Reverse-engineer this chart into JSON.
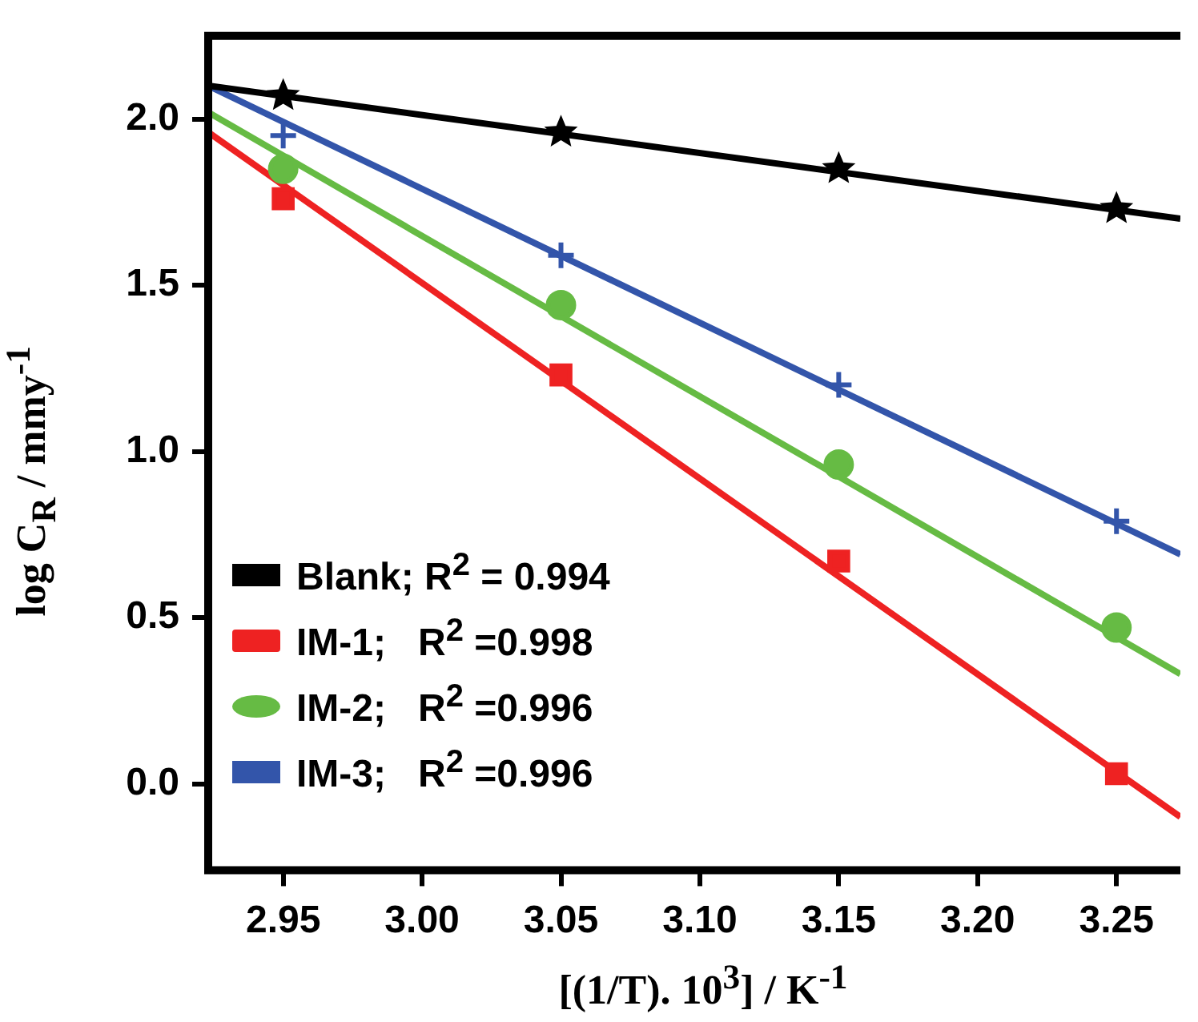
{
  "chart_data": {
    "type": "scatter",
    "xlabel": "[(1/T). 10$^{3}$] / K$^{-1}$",
    "ylabel": "log C$_{R}$ / mmy$^{-1}$",
    "xlim": [
      2.923,
      3.273
    ],
    "xticks": [
      2.95,
      {
        "value": 3.0,
        "label": "3.00"
      },
      3.05,
      {
        "value": 3.1,
        "label": "3.10"
      },
      3.15,
      {
        "value": 3.2,
        "label": "3.20"
      },
      3.25
    ],
    "ylim": [
      -0.26,
      2.25
    ],
    "yticks": [
      {
        "value": 0,
        "label": "0.0"
      },
      {
        "value": 0.5,
        "label": "0.5"
      },
      {
        "value": 1,
        "label": "1.0"
      },
      {
        "value": 1.5,
        "label": "1.5"
      },
      {
        "value": 2,
        "label": "2.0"
      }
    ],
    "grid": false,
    "legend": "bottom left",
    "series": [
      {
        "type": "scatter",
        "name": "Blank; R$^{2}$ = 0.994",
        "color": "#000000",
        "marker": "star",
        "x": [
          2.95,
          3.05,
          3.15,
          3.25
        ],
        "values": [
          2.07,
          1.96,
          1.85,
          1.73
        ]
      },
      {
        "type": "scatter",
        "name": "IM-1;   R$^{2}$ =0.998",
        "color": "#ee2222",
        "marker": "square",
        "x": [
          2.95,
          3.05,
          3.15,
          3.25
        ],
        "values": [
          1.76,
          1.23,
          0.67,
          0.03
        ]
      },
      {
        "type": "scatter",
        "name": "IM-2;   R$^{2}$ =0.996",
        "color": "#66bb44",
        "marker": "circle",
        "x": [
          2.95,
          3.05,
          3.15,
          3.25
        ],
        "values": [
          1.85,
          1.44,
          0.96,
          0.47
        ]
      },
      {
        "type": "scatter",
        "name": "IM-3;   R$^{2}$ =0.996",
        "color": "#3355aa",
        "marker": "cross",
        "x": [
          2.95,
          3.05,
          3.15,
          3.25
        ],
        "values": [
          1.95,
          1.59,
          1.2,
          0.79
        ]
      },
      {
        "type": "line",
        "color": "#000000",
        "x": [
          2.923,
          3.273
        ],
        "values": [
          2.1,
          1.7
        ]
      },
      {
        "type": "line",
        "color": "#ee2222",
        "x": [
          2.923,
          3.273
        ],
        "values": [
          1.96,
          -0.1
        ]
      },
      {
        "type": "line",
        "color": "#66bb44",
        "x": [
          2.923,
          3.273
        ],
        "values": [
          2.02,
          0.33
        ]
      },
      {
        "type": "line",
        "color": "#3355aa",
        "x": [
          2.923,
          3.273
        ],
        "values": [
          2.1,
          0.69
        ]
      }
    ]
  }
}
